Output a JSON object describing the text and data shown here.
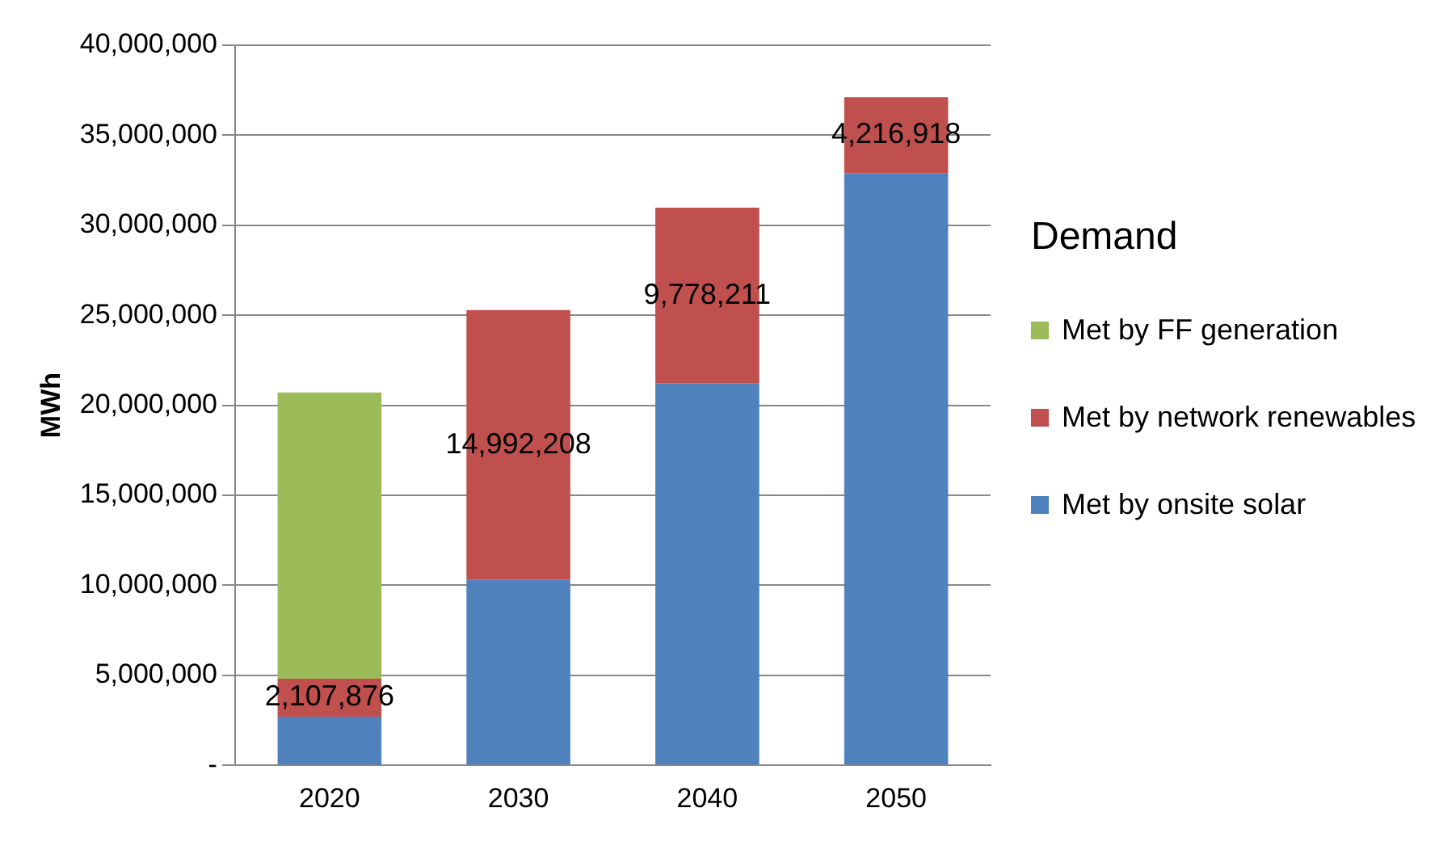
{
  "chart_data": {
    "type": "bar",
    "stacked": true,
    "categories": [
      "2020",
      "2030",
      "2040",
      "2050"
    ],
    "ylabel": "MWh",
    "legend_title": "Demand",
    "legend": "right",
    "grid": "y",
    "ylim": [
      0,
      40000000
    ],
    "yticks": [
      {
        "value": 0,
        "label": "-"
      },
      {
        "value": 5000000,
        "label": "5,000,000"
      },
      {
        "value": 10000000,
        "label": "10,000,000"
      },
      {
        "value": 15000000,
        "label": "15,000,000"
      },
      {
        "value": 20000000,
        "label": "20,000,000"
      },
      {
        "value": 25000000,
        "label": "25,000,000"
      },
      {
        "value": 30000000,
        "label": "30,000,000"
      },
      {
        "value": 35000000,
        "label": "35,000,000"
      },
      {
        "value": 40000000,
        "label": "40,000,000"
      }
    ],
    "series": [
      {
        "name": "Met by onsite solar",
        "color": "#4f81bd",
        "values": [
          2700000,
          10300000,
          21200000,
          32900000
        ]
      },
      {
        "name": "Met by network renewables",
        "color": "#c0504d",
        "values": [
          2107876,
          14992208,
          9778211,
          4216918
        ],
        "value_labels": [
          "2,107,876",
          "14,992,208",
          "9,778,211",
          "4,216,918"
        ]
      },
      {
        "name": "Met by FF generation",
        "color": "#9bbb59",
        "values": [
          15900000,
          null,
          null,
          null
        ]
      }
    ]
  }
}
